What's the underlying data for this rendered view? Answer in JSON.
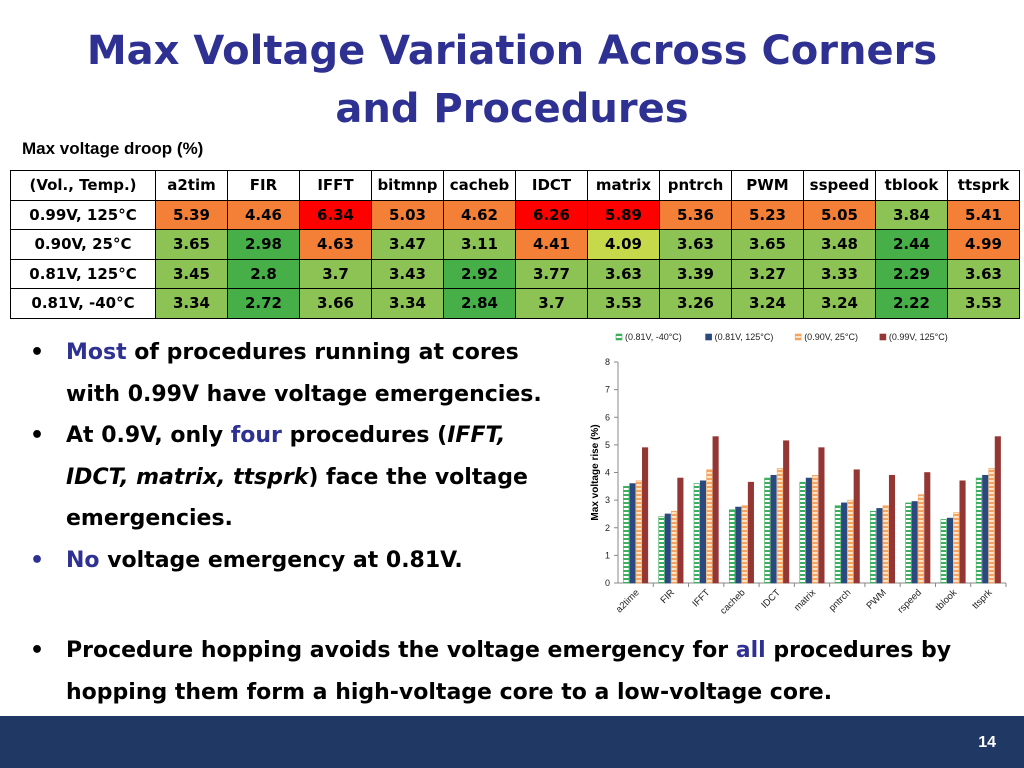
{
  "slide": {
    "title_line1": "Max Voltage Variation Across Corners",
    "title_line2": "and Procedures",
    "page_number": "14"
  },
  "table": {
    "caption": "Max voltage droop (%)",
    "header": [
      "(Vol., Temp.)",
      "a2tim",
      "FIR",
      "IFFT",
      "bitmnp",
      "cacheb",
      "IDCT",
      "matrix",
      "pntrch",
      "PWM",
      "sspeed",
      "tblook",
      "ttsprk"
    ],
    "rows": [
      {
        "label": "0.99V, 125°C",
        "values": [
          "5.39",
          "4.46",
          "6.34",
          "5.03",
          "4.62",
          "6.26",
          "5.89",
          "5.36",
          "5.23",
          "5.05",
          "3.84",
          "5.41"
        ]
      },
      {
        "label": "0.90V, 25°C",
        "values": [
          "3.65",
          "2.98",
          "4.63",
          "3.47",
          "3.11",
          "4.41",
          "4.09",
          "3.63",
          "3.65",
          "3.48",
          "2.44",
          "4.99"
        ]
      },
      {
        "label": "0.81V, 125°C",
        "values": [
          "3.45",
          "2.8",
          "3.7",
          "3.43",
          "2.92",
          "3.77",
          "3.63",
          "3.39",
          "3.27",
          "3.33",
          "2.29",
          "3.63"
        ]
      },
      {
        "label": "0.81V, -40°C",
        "values": [
          "3.34",
          "2.72",
          "3.66",
          "3.34",
          "2.84",
          "3.7",
          "3.53",
          "3.26",
          "3.24",
          "3.24",
          "2.22",
          "3.53"
        ]
      }
    ]
  },
  "bullets": {
    "b1": {
      "hl": "Most",
      "text": " of procedures running at cores with 0.99V have voltage emergencies."
    },
    "b2": {
      "t1": "At 0.9V, only ",
      "hl": "four",
      "t2": " procedures (",
      "it": "IFFT, IDCT, matrix, ttsprk",
      "t3": ") face the voltage emergencies."
    },
    "b3": {
      "hl": "No",
      "text": " voltage emergency at 0.81V."
    },
    "b4": {
      "t1": "Procedure hopping avoids the voltage emergency for ",
      "hl": "all",
      "t2": " procedures by hopping them form a high-voltage core to a low-voltage core."
    }
  },
  "colors": {
    "title": "#2E3192",
    "highlight": "#2E3192",
    "footer": "#1F3864",
    "cell_red": "#FF0000",
    "cell_orange": "#F47F37",
    "cell_yellow_green": "#C5D94B",
    "cell_green": "#8DC354",
    "cell_dark_green": "#46AF48"
  },
  "chart_data": {
    "type": "bar",
    "title": "",
    "xlabel": "",
    "ylabel": "Max voltage rise (%)",
    "ylim": [
      0,
      8
    ],
    "yticks": [
      "0",
      "1",
      "2",
      "3",
      "4",
      "5",
      "6",
      "7",
      "8"
    ],
    "legend_position": "top",
    "grid": false,
    "categories": [
      "a2time",
      "FIR",
      "IFFT",
      "cacheb",
      "IDCT",
      "matrix",
      "pntrch",
      "PWM",
      "rspeed",
      "tblook",
      "ttsprk"
    ],
    "series": [
      {
        "name": "(0.81V, -40°C)",
        "color": "#3CAF5E",
        "pattern": "green-stripes",
        "values": [
          3.5,
          2.4,
          3.6,
          2.65,
          3.8,
          3.65,
          2.8,
          2.6,
          2.9,
          2.3,
          3.8
        ]
      },
      {
        "name": "(0.81V, 125°C)",
        "color": "#2A4A7F",
        "pattern": "solid",
        "values": [
          3.6,
          2.5,
          3.7,
          2.75,
          3.9,
          3.8,
          2.9,
          2.7,
          2.95,
          2.35,
          3.9
        ]
      },
      {
        "name": "(0.90V, 25°C)",
        "color": "#F4A460",
        "pattern": "orange-stripes",
        "values": [
          3.7,
          2.6,
          4.1,
          2.8,
          4.15,
          3.9,
          3.0,
          2.8,
          3.2,
          2.55,
          4.15
        ]
      },
      {
        "name": "(0.99V, 125°C)",
        "color": "#943634",
        "pattern": "solid",
        "values": [
          4.9,
          3.8,
          5.3,
          3.65,
          5.15,
          4.9,
          4.1,
          3.9,
          4.0,
          3.7,
          5.3
        ]
      }
    ]
  }
}
